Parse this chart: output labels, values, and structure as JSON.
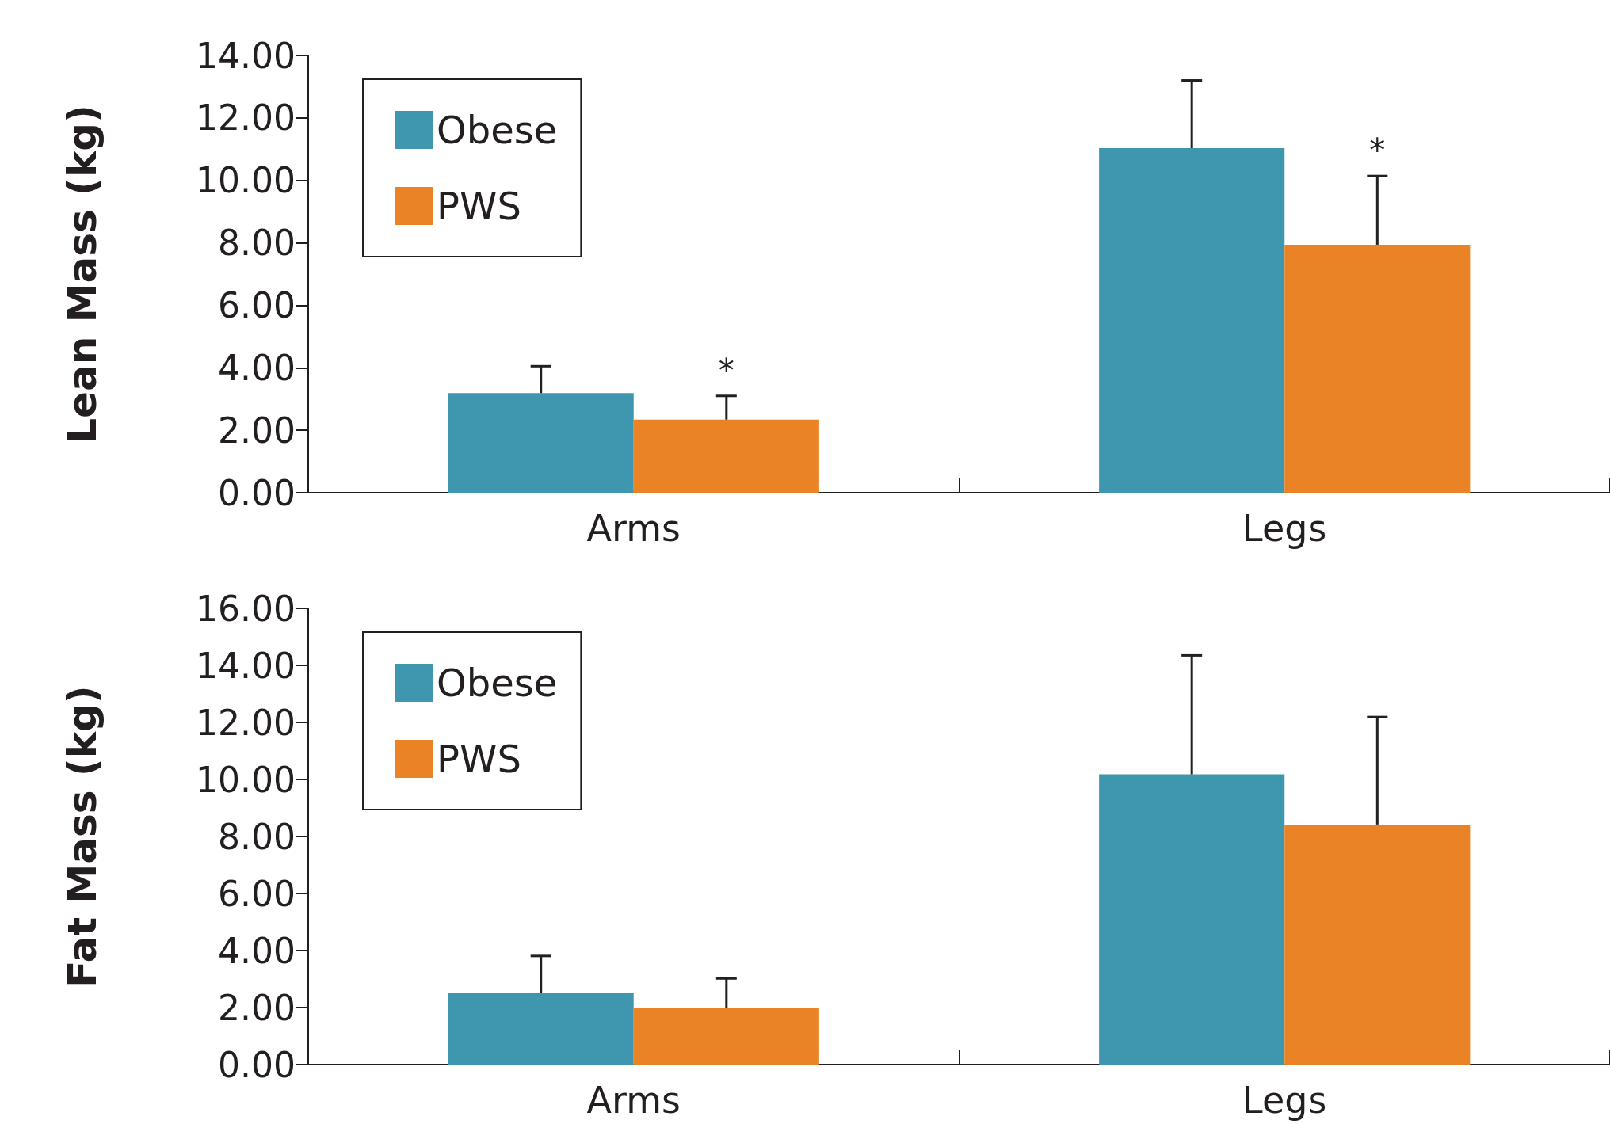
{
  "chart_data": [
    {
      "type": "bar",
      "ylabel": "Lean Mass (kg)",
      "categories": [
        "Arms",
        "Legs"
      ],
      "series": [
        {
          "name": "Obese",
          "color": "#3e97ae",
          "values": [
            3.19,
            11.03
          ],
          "errors": [
            [
              3.19,
              4.05
            ],
            [
              11.03,
              13.2
            ]
          ]
        },
        {
          "name": "PWS",
          "color": "#e98325",
          "values": [
            2.34,
            7.94
          ],
          "errors": [
            [
              2.34,
              3.1
            ],
            [
              7.94,
              10.14
            ]
          ]
        }
      ],
      "ylim": [
        0,
        14
      ],
      "yticks": [
        {
          "value": 0,
          "label": "0.00"
        },
        {
          "value": 2,
          "label": "2.00"
        },
        {
          "value": 4,
          "label": "4.00"
        },
        {
          "value": 6,
          "label": "6.00"
        },
        {
          "value": 8,
          "label": "8.00"
        },
        {
          "value": 10,
          "label": "10.00"
        },
        {
          "value": 12,
          "label": "12.00"
        },
        {
          "value": 14,
          "label": "14.00"
        }
      ],
      "legend": "top left",
      "grid": false,
      "annotations": [
        "*",
        "*"
      ]
    },
    {
      "type": "bar",
      "ylabel": "Fat Mass (kg)",
      "categories": [
        "Arms",
        "Legs"
      ],
      "series": [
        {
          "name": "Obese",
          "color": "#3e97ae",
          "values": [
            2.52,
            10.18
          ],
          "errors": [
            [
              2.52,
              3.81
            ],
            [
              10.18,
              14.35
            ]
          ]
        },
        {
          "name": "PWS",
          "color": "#e98325",
          "values": [
            1.98,
            8.42
          ],
          "errors": [
            [
              1.98,
              3.02
            ],
            [
              8.42,
              12.19
            ]
          ]
        }
      ],
      "ylim": [
        0,
        16
      ],
      "yticks": [
        {
          "value": 0,
          "label": "0.00"
        },
        {
          "value": 2,
          "label": "2.00"
        },
        {
          "value": 4,
          "label": "4.00"
        },
        {
          "value": 6,
          "label": "6.00"
        },
        {
          "value": 8,
          "label": "8.00"
        },
        {
          "value": 10,
          "label": "10.00"
        },
        {
          "value": 12,
          "label": "12.00"
        },
        {
          "value": 14,
          "label": "14.00"
        },
        {
          "value": 16,
          "label": "16.00"
        }
      ],
      "legend": "top left",
      "grid": false
    }
  ]
}
